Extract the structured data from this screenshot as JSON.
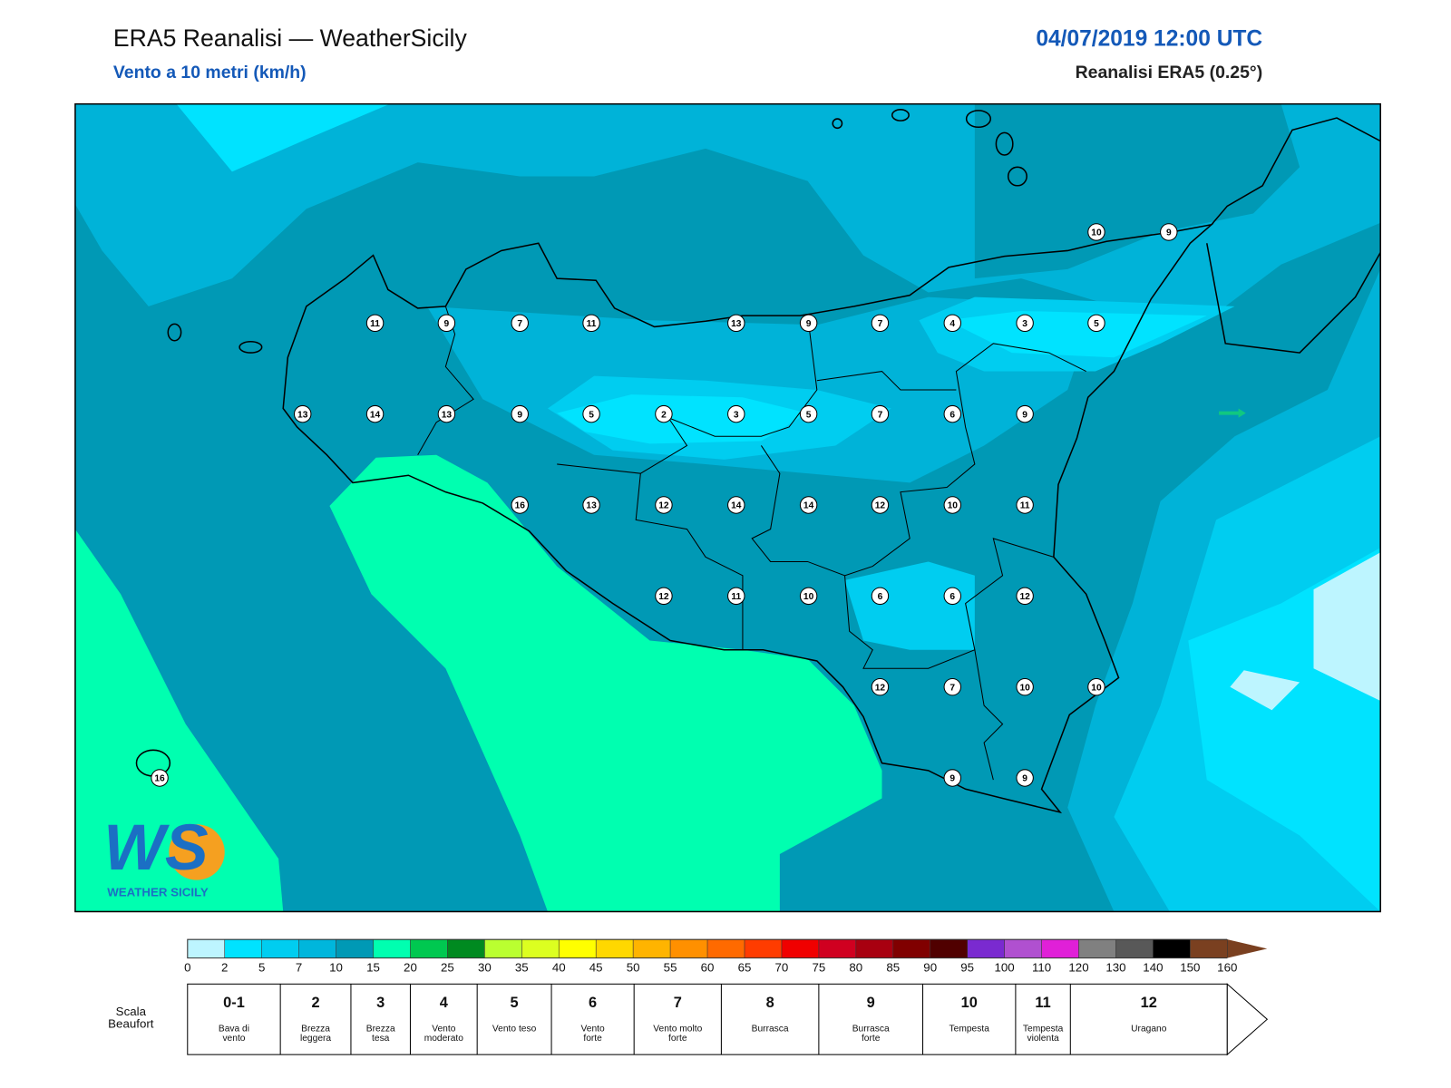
{
  "header": {
    "title": "ERA5 Reanalisi — WeatherSicily",
    "subtitle": "Vento a 10 metri (km/h)",
    "datetime": "04/07/2019 12:00 UTC",
    "product": "Reanalisi ERA5 (0.25°)"
  },
  "map": {
    "stations": [
      10,
      9,
      11,
      9,
      7,
      11,
      13,
      9,
      7,
      4,
      3,
      5,
      13,
      14,
      13,
      9,
      5,
      2,
      3,
      5,
      7,
      6,
      9,
      16,
      13,
      12,
      14,
      14,
      12,
      10,
      11,
      12,
      11,
      10,
      6,
      6,
      12,
      12,
      7,
      10,
      10,
      9,
      9,
      16
    ]
  },
  "logo": {
    "mark": "WS",
    "name": "WEATHER SICILY"
  },
  "colorbar": {
    "ticks": [
      0,
      2,
      5,
      7,
      10,
      15,
      20,
      25,
      30,
      35,
      40,
      45,
      50,
      55,
      60,
      65,
      70,
      75,
      80,
      85,
      90,
      95,
      100,
      110,
      120,
      130,
      140,
      150,
      160
    ],
    "colors": [
      "#bdf5ff",
      "#00e3ff",
      "#00cdf0",
      "#00b6dc",
      "#0099b5",
      "#00ffb0",
      "#00c850",
      "#008a20",
      "#baff30",
      "#dcff20",
      "#ffff00",
      "#ffd800",
      "#ffb400",
      "#ff9000",
      "#ff6a00",
      "#ff3c00",
      "#f00000",
      "#d00020",
      "#a80010",
      "#800000",
      "#500000",
      "#7a2ad0",
      "#b050d0",
      "#e020d8",
      "#808080",
      "#585858",
      "#000000",
      "#7a4020",
      "#c8844a"
    ]
  },
  "beaufort": {
    "title": "Scala Beaufort",
    "levels": [
      {
        "force": "0-1",
        "label": "Bava di vento"
      },
      {
        "force": "2",
        "label": "Brezza leggera"
      },
      {
        "force": "3",
        "label": "Brezza tesa"
      },
      {
        "force": "4",
        "label": "Vento moderato"
      },
      {
        "force": "5",
        "label": "Vento teso"
      },
      {
        "force": "6",
        "label": "Vento forte"
      },
      {
        "force": "7",
        "label": "Vento molto forte"
      },
      {
        "force": "8",
        "label": "Burrasca"
      },
      {
        "force": "9",
        "label": "Burrasca forte"
      },
      {
        "force": "10",
        "label": "Tempesta"
      },
      {
        "force": "11",
        "label": "Tempesta violenta"
      },
      {
        "force": "12",
        "label": "Uragano"
      }
    ]
  }
}
